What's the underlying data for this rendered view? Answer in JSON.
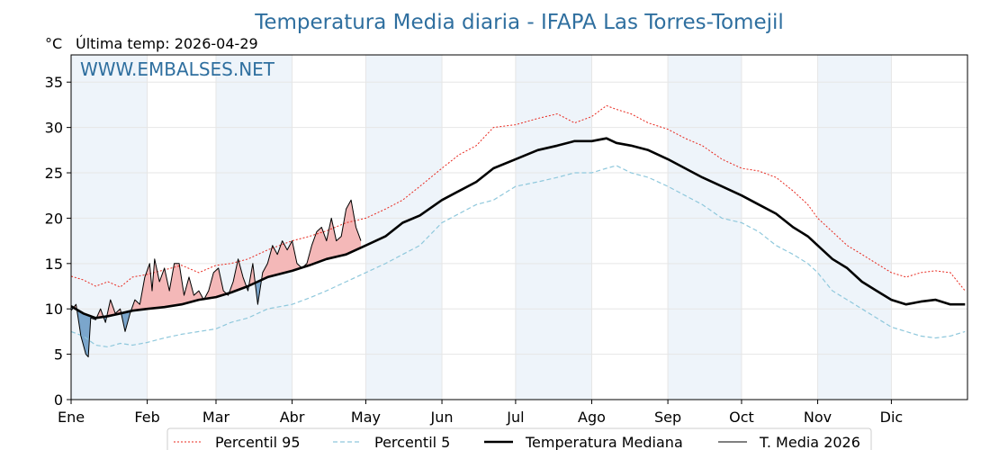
{
  "title": "Temperatura Media diaria - IFAPA Las Torres-Tomejil",
  "unit_label": "°C",
  "last_temp_label": "Última temp: 2026-04-29",
  "watermark": "WWW.EMBALSES.NET",
  "colors": {
    "p95": "#e8281e",
    "p5": "#8fc8dc",
    "median": "#000000",
    "current": "#000000",
    "above_fill": "#f4b8b8",
    "below_fill": "#7ba6cc",
    "month_band": "#eef4fa",
    "title": "#2f6f9f"
  },
  "chart_data": {
    "type": "line",
    "title": "Temperatura Media diaria - IFAPA Las Torres-Tomejil",
    "ylabel": "°C",
    "xlim": [
      0,
      365
    ],
    "ylim": [
      0,
      38
    ],
    "yticks": [
      0,
      5,
      10,
      15,
      20,
      25,
      30,
      35
    ],
    "months": [
      "Ene",
      "Feb",
      "Mar",
      "Abr",
      "May",
      "Jun",
      "Jul",
      "Ago",
      "Sep",
      "Oct",
      "Nov",
      "Dic"
    ],
    "month_starts": [
      0,
      31,
      59,
      90,
      120,
      151,
      181,
      212,
      243,
      273,
      304,
      334
    ],
    "grid": true,
    "legend_position": "bottom",
    "series": [
      {
        "name": "Percentil 95",
        "style": "dotted",
        "x": [
          0,
          5,
          10,
          15,
          20,
          25,
          31,
          38,
          45,
          52,
          59,
          65,
          72,
          80,
          90,
          97,
          104,
          112,
          120,
          128,
          135,
          142,
          151,
          158,
          165,
          172,
          181,
          190,
          198,
          205,
          212,
          218,
          222,
          228,
          235,
          243,
          250,
          257,
          265,
          273,
          280,
          287,
          294,
          300,
          304,
          310,
          316,
          322,
          328,
          334,
          340,
          346,
          352,
          358,
          364
        ],
        "y": [
          13.6,
          13.2,
          12.5,
          13.0,
          12.4,
          13.5,
          13.8,
          14.3,
          14.8,
          14.0,
          14.8,
          15.0,
          15.5,
          16.5,
          17.5,
          18.0,
          18.6,
          19.5,
          20.0,
          21.0,
          22.0,
          23.5,
          25.5,
          27.0,
          28.0,
          30.0,
          30.3,
          31.0,
          31.5,
          30.5,
          31.2,
          32.4,
          32.0,
          31.5,
          30.5,
          29.8,
          28.8,
          28.0,
          26.5,
          25.5,
          25.2,
          24.5,
          23.0,
          21.5,
          20.0,
          18.5,
          17.0,
          16.0,
          15.0,
          14.0,
          13.5,
          14.0,
          14.2,
          14.0,
          12.0
        ]
      },
      {
        "name": "Percentil 5",
        "style": "dashed",
        "x": [
          0,
          5,
          10,
          15,
          20,
          25,
          31,
          38,
          45,
          52,
          59,
          65,
          72,
          80,
          90,
          97,
          104,
          112,
          120,
          128,
          135,
          142,
          151,
          158,
          165,
          172,
          181,
          190,
          198,
          205,
          212,
          218,
          222,
          228,
          235,
          243,
          250,
          257,
          265,
          273,
          280,
          287,
          294,
          300,
          304,
          310,
          316,
          322,
          328,
          334,
          340,
          346,
          352,
          358,
          364
        ],
        "y": [
          7.5,
          7.0,
          6.0,
          5.8,
          6.2,
          6.0,
          6.3,
          6.8,
          7.2,
          7.5,
          7.8,
          8.5,
          9.0,
          10.0,
          10.5,
          11.2,
          12.0,
          13.0,
          14.0,
          15.0,
          16.0,
          17.0,
          19.5,
          20.5,
          21.5,
          22.0,
          23.5,
          24.0,
          24.5,
          25.0,
          25.0,
          25.5,
          25.8,
          25.0,
          24.5,
          23.5,
          22.5,
          21.5,
          20.0,
          19.5,
          18.5,
          17.0,
          16.0,
          15.0,
          14.0,
          12.0,
          11.0,
          10.0,
          9.0,
          8.0,
          7.5,
          7.0,
          6.8,
          7.0,
          7.5
        ]
      },
      {
        "name": "Temperatura Mediana",
        "style": "solid-thick",
        "x": [
          0,
          5,
          10,
          15,
          20,
          25,
          31,
          38,
          45,
          52,
          59,
          65,
          72,
          80,
          90,
          97,
          104,
          112,
          120,
          128,
          135,
          142,
          151,
          158,
          165,
          172,
          181,
          190,
          198,
          205,
          212,
          218,
          222,
          228,
          235,
          243,
          250,
          257,
          265,
          273,
          280,
          287,
          294,
          300,
          304,
          310,
          316,
          322,
          328,
          334,
          340,
          346,
          352,
          358,
          364
        ],
        "y": [
          10.3,
          9.5,
          9.0,
          9.2,
          9.5,
          9.8,
          10.0,
          10.2,
          10.5,
          11.0,
          11.3,
          11.8,
          12.5,
          13.5,
          14.2,
          14.8,
          15.5,
          16.0,
          17.0,
          18.0,
          19.5,
          20.3,
          22.0,
          23.0,
          24.0,
          25.5,
          26.5,
          27.5,
          28.0,
          28.5,
          28.5,
          28.8,
          28.3,
          28.0,
          27.5,
          26.5,
          25.5,
          24.5,
          23.5,
          22.5,
          21.5,
          20.5,
          19.0,
          18.0,
          17.0,
          15.5,
          14.5,
          13.0,
          12.0,
          11.0,
          10.5,
          10.8,
          11.0,
          10.5,
          10.5
        ]
      },
      {
        "name": "T. Media 2026",
        "style": "solid-thin",
        "x": [
          0,
          2,
          4,
          6,
          7,
          8,
          10,
          12,
          14,
          16,
          18,
          20,
          22,
          24,
          26,
          28,
          30,
          32,
          33,
          34,
          36,
          38,
          40,
          42,
          44,
          46,
          48,
          50,
          52,
          54,
          56,
          58,
          60,
          62,
          64,
          66,
          68,
          70,
          72,
          74,
          76,
          78,
          80,
          82,
          84,
          86,
          88,
          90,
          92,
          94,
          96,
          98,
          100,
          102,
          104,
          106,
          108,
          110,
          112,
          114,
          116,
          118
        ],
        "y": [
          9.8,
          10.5,
          7.0,
          5.0,
          4.7,
          9.0,
          8.8,
          10.0,
          8.5,
          11.0,
          9.5,
          10.0,
          7.5,
          9.5,
          11.0,
          10.5,
          13.5,
          15.0,
          12.0,
          15.5,
          13.0,
          14.5,
          12.0,
          15.0,
          15.0,
          11.5,
          13.5,
          11.5,
          12.0,
          11.0,
          12.0,
          14.0,
          14.5,
          12.0,
          11.5,
          13.0,
          15.5,
          13.5,
          12.0,
          15.0,
          10.5,
          14.0,
          15.0,
          17.0,
          16.0,
          17.5,
          16.5,
          17.5,
          15.0,
          14.5,
          15.0,
          17.0,
          18.5,
          19.0,
          17.5,
          20.0,
          17.5,
          18.0,
          21.0,
          22.0,
          19.0,
          17.5
        ]
      }
    ]
  },
  "legend": {
    "items": [
      {
        "label": "Percentil 95",
        "style": "dotted"
      },
      {
        "label": "Percentil 5",
        "style": "dashed"
      },
      {
        "label": "Temperatura Mediana",
        "style": "solid-thick"
      },
      {
        "label": "T. Media 2026",
        "style": "solid-thin"
      }
    ]
  }
}
